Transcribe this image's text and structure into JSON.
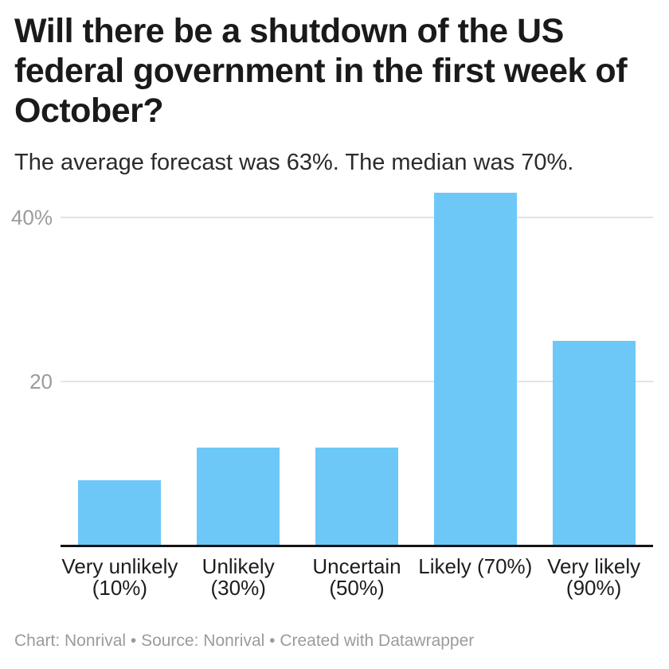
{
  "header": {
    "title_lines": [
      "Will there be a shutdown of the US",
      "federal government in the first week of",
      "October?"
    ],
    "subtitle": "The average forecast was 63%. The median was 70%."
  },
  "chart_data": {
    "type": "bar",
    "title": "Will there be a shutdown of the US federal government in the first week of October?",
    "subtitle": "The average forecast was 63%. The median was 70%.",
    "categories": [
      "Very unlikely\n(10%)",
      "Unlikely\n(30%)",
      "Uncertain\n(50%)",
      "Likely (70%)",
      "Very likely\n(90%)"
    ],
    "values": [
      8,
      12,
      12,
      43,
      25
    ],
    "xlabel": "",
    "ylabel": "",
    "ylim": [
      0,
      44
    ],
    "yticks": [
      {
        "value": 20,
        "label": "20"
      },
      {
        "value": 40,
        "label": "40%"
      }
    ],
    "grid": "horizontal",
    "legend": "none",
    "bar_color": "#6dc8f7"
  },
  "footer": {
    "text": "Chart: Nonrival • Source: Nonrival • Created with Datawrapper"
  }
}
